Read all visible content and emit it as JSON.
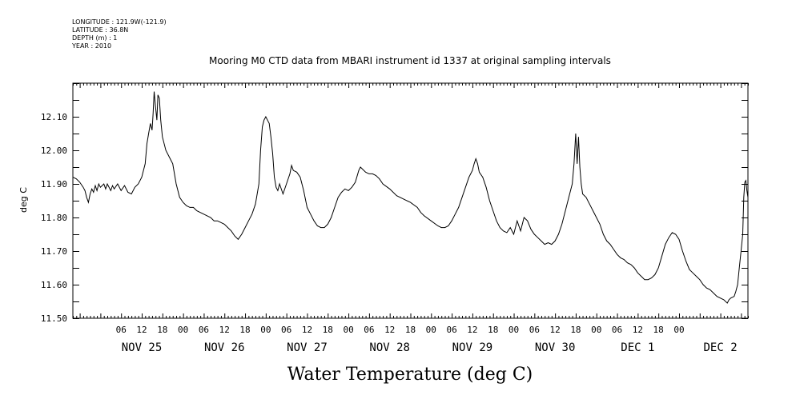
{
  "header": {
    "longitude": "LONGITUDE : 121.9W(-121.9)",
    "latitude": "LATITUDE : 36.8N",
    "depth": "DEPTH (m) : 1",
    "year": "YEAR : 2010"
  },
  "chart_data": {
    "type": "line",
    "title": "Mooring M0 CTD data from MBARI instrument id 1337 at original sampling intervals",
    "xlabel": "Water Temperature (deg C)",
    "ylabel": "deg C",
    "ylim": [
      11.5,
      12.2
    ],
    "xlim": [
      -8,
      188
    ],
    "x_unit": "hours since NOV 25 00:00",
    "y_ticks": [
      "11.50",
      "11.60",
      "11.70",
      "11.80",
      "11.90",
      "12.00",
      "12.10"
    ],
    "hour_tick_labels": [
      "06",
      "12",
      "18",
      "00",
      "06",
      "12",
      "18",
      "00",
      "06",
      "12",
      "18",
      "00",
      "06",
      "12",
      "18",
      "00",
      "06",
      "12",
      "18",
      "00",
      "06",
      "12",
      "18",
      "00",
      "06",
      "12",
      "18",
      "00"
    ],
    "day_labels": [
      "NOV 25",
      "NOV 26",
      "NOV 27",
      "NOV 28",
      "NOV 29",
      "NOV 30",
      "DEC  1",
      "DEC  2"
    ],
    "grid": false,
    "series": [
      {
        "points": [
          [
            -8,
            11.92
          ],
          [
            -7,
            11.915
          ],
          [
            -6,
            11.905
          ],
          [
            -5,
            11.89
          ],
          [
            -4.5,
            11.88
          ],
          [
            -4,
            11.86
          ],
          [
            -3.5,
            11.845
          ],
          [
            -3,
            11.87
          ],
          [
            -2.5,
            11.885
          ],
          [
            -2,
            11.875
          ],
          [
            -1.5,
            11.895
          ],
          [
            -1,
            11.88
          ],
          [
            -0.5,
            11.9
          ],
          [
            0,
            11.89
          ],
          [
            1,
            11.9
          ],
          [
            1.5,
            11.885
          ],
          [
            2,
            11.9
          ],
          [
            3,
            11.88
          ],
          [
            3.5,
            11.895
          ],
          [
            4,
            11.885
          ],
          [
            5,
            11.9
          ],
          [
            6,
            11.88
          ],
          [
            7,
            11.895
          ],
          [
            8,
            11.875
          ],
          [
            9,
            11.87
          ],
          [
            10,
            11.89
          ],
          [
            11,
            11.9
          ],
          [
            12,
            11.92
          ],
          [
            13,
            11.96
          ],
          [
            13.5,
            12.02
          ],
          [
            14,
            12.05
          ],
          [
            14.5,
            12.08
          ],
          [
            15,
            12.06
          ],
          [
            15.3,
            12.11
          ],
          [
            15.6,
            12.175
          ],
          [
            16,
            12.13
          ],
          [
            16.4,
            12.09
          ],
          [
            16.7,
            12.165
          ],
          [
            17.1,
            12.155
          ],
          [
            17.5,
            12.09
          ],
          [
            18,
            12.04
          ],
          [
            19,
            12.0
          ],
          [
            20,
            11.98
          ],
          [
            21,
            11.96
          ],
          [
            22,
            11.9
          ],
          [
            23,
            11.86
          ],
          [
            24,
            11.845
          ],
          [
            25,
            11.835
          ],
          [
            26,
            11.83
          ],
          [
            27,
            11.83
          ],
          [
            28,
            11.82
          ],
          [
            29,
            11.815
          ],
          [
            30,
            11.81
          ],
          [
            31,
            11.805
          ],
          [
            32,
            11.8
          ],
          [
            33,
            11.79
          ],
          [
            34,
            11.79
          ],
          [
            35,
            11.785
          ],
          [
            36,
            11.78
          ],
          [
            37,
            11.77
          ],
          [
            38,
            11.76
          ],
          [
            39,
            11.745
          ],
          [
            40,
            11.735
          ],
          [
            41,
            11.75
          ],
          [
            42,
            11.77
          ],
          [
            43,
            11.79
          ],
          [
            44,
            11.81
          ],
          [
            45,
            11.84
          ],
          [
            46,
            11.9
          ],
          [
            46.5,
            12.0
          ],
          [
            47,
            12.07
          ],
          [
            47.5,
            12.09
          ],
          [
            48,
            12.1
          ],
          [
            48.5,
            12.09
          ],
          [
            49,
            12.08
          ],
          [
            49.5,
            12.04
          ],
          [
            50,
            11.99
          ],
          [
            50.5,
            11.92
          ],
          [
            51,
            11.89
          ],
          [
            51.5,
            11.88
          ],
          [
            52,
            11.9
          ],
          [
            53,
            11.87
          ],
          [
            54,
            11.9
          ],
          [
            55,
            11.93
          ],
          [
            55.5,
            11.955
          ],
          [
            56,
            11.94
          ],
          [
            57,
            11.935
          ],
          [
            58,
            11.92
          ],
          [
            59,
            11.88
          ],
          [
            60,
            11.83
          ],
          [
            61,
            11.81
          ],
          [
            62,
            11.79
          ],
          [
            63,
            11.775
          ],
          [
            64,
            11.77
          ],
          [
            65,
            11.77
          ],
          [
            66,
            11.78
          ],
          [
            67,
            11.8
          ],
          [
            68,
            11.83
          ],
          [
            69,
            11.86
          ],
          [
            70,
            11.875
          ],
          [
            71,
            11.885
          ],
          [
            72,
            11.88
          ],
          [
            73,
            11.89
          ],
          [
            74,
            11.905
          ],
          [
            75,
            11.94
          ],
          [
            75.5,
            11.95
          ],
          [
            76,
            11.945
          ],
          [
            77,
            11.935
          ],
          [
            78,
            11.93
          ],
          [
            79,
            11.93
          ],
          [
            80,
            11.925
          ],
          [
            81,
            11.915
          ],
          [
            82,
            11.9
          ],
          [
            84,
            11.885
          ],
          [
            86,
            11.865
          ],
          [
            88,
            11.855
          ],
          [
            90,
            11.845
          ],
          [
            92,
            11.83
          ],
          [
            93,
            11.815
          ],
          [
            94,
            11.805
          ],
          [
            96,
            11.79
          ],
          [
            98,
            11.775
          ],
          [
            99,
            11.77
          ],
          [
            100,
            11.77
          ],
          [
            101,
            11.775
          ],
          [
            102,
            11.79
          ],
          [
            103,
            11.81
          ],
          [
            104,
            11.83
          ],
          [
            105,
            11.86
          ],
          [
            106,
            11.89
          ],
          [
            107,
            11.92
          ],
          [
            108,
            11.94
          ],
          [
            108.5,
            11.96
          ],
          [
            109,
            11.975
          ],
          [
            109.5,
            11.96
          ],
          [
            110,
            11.935
          ],
          [
            111,
            11.92
          ],
          [
            112,
            11.89
          ],
          [
            113,
            11.85
          ],
          [
            114,
            11.82
          ],
          [
            115,
            11.79
          ],
          [
            116,
            11.77
          ],
          [
            117,
            11.76
          ],
          [
            118,
            11.755
          ],
          [
            119,
            11.77
          ],
          [
            120,
            11.75
          ],
          [
            121,
            11.79
          ],
          [
            122,
            11.76
          ],
          [
            123,
            11.8
          ],
          [
            124,
            11.79
          ],
          [
            125,
            11.765
          ],
          [
            126,
            11.75
          ],
          [
            127,
            11.74
          ],
          [
            128,
            11.73
          ],
          [
            129,
            11.72
          ],
          [
            130,
            11.725
          ],
          [
            131,
            11.72
          ],
          [
            132,
            11.73
          ],
          [
            133,
            11.75
          ],
          [
            134,
            11.78
          ],
          [
            135,
            11.82
          ],
          [
            136,
            11.86
          ],
          [
            137,
            11.9
          ],
          [
            137.5,
            11.96
          ],
          [
            138,
            12.05
          ],
          [
            138.4,
            11.96
          ],
          [
            138.8,
            12.04
          ],
          [
            139.2,
            11.95
          ],
          [
            139.6,
            11.9
          ],
          [
            140,
            11.87
          ],
          [
            141,
            11.86
          ],
          [
            142,
            11.84
          ],
          [
            143,
            11.82
          ],
          [
            144,
            11.8
          ],
          [
            145,
            11.78
          ],
          [
            146,
            11.75
          ],
          [
            147,
            11.73
          ],
          [
            148,
            11.72
          ],
          [
            149,
            11.705
          ],
          [
            150,
            11.69
          ],
          [
            151,
            11.68
          ],
          [
            152,
            11.675
          ],
          [
            153,
            11.665
          ],
          [
            154,
            11.66
          ],
          [
            155,
            11.65
          ],
          [
            156,
            11.635
          ],
          [
            157,
            11.625
          ],
          [
            158,
            11.615
          ],
          [
            159,
            11.615
          ],
          [
            160,
            11.62
          ],
          [
            161,
            11.63
          ],
          [
            162,
            11.65
          ],
          [
            163,
            11.685
          ],
          [
            164,
            11.72
          ],
          [
            165,
            11.74
          ],
          [
            166,
            11.755
          ],
          [
            167,
            11.75
          ],
          [
            168,
            11.735
          ],
          [
            169,
            11.7
          ],
          [
            170,
            11.67
          ],
          [
            171,
            11.645
          ],
          [
            172,
            11.635
          ],
          [
            173,
            11.625
          ],
          [
            174,
            11.615
          ],
          [
            175,
            11.6
          ],
          [
            176,
            11.59
          ],
          [
            177,
            11.585
          ],
          [
            178,
            11.575
          ],
          [
            179,
            11.565
          ],
          [
            180,
            11.56
          ],
          [
            181,
            11.555
          ],
          [
            182,
            11.545
          ],
          [
            182.5,
            11.555
          ],
          [
            183,
            11.56
          ],
          [
            184,
            11.565
          ],
          [
            184.5,
            11.58
          ],
          [
            185,
            11.6
          ],
          [
            185.5,
            11.65
          ],
          [
            186,
            11.7
          ],
          [
            186.5,
            11.75
          ],
          [
            186.8,
            11.86
          ],
          [
            187.1,
            11.905
          ],
          [
            187.4,
            11.91
          ],
          [
            187.7,
            11.88
          ],
          [
            188,
            11.86
          ]
        ]
      }
    ]
  }
}
